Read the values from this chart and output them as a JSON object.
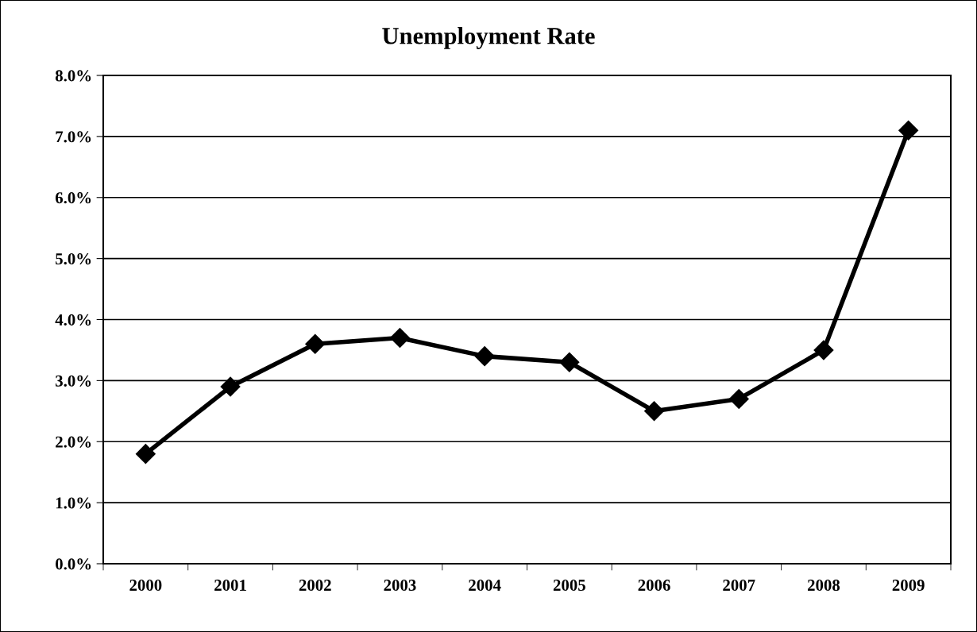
{
  "chart_data": {
    "type": "line",
    "title": "Unemployment Rate",
    "categories": [
      "2000",
      "2001",
      "2002",
      "2003",
      "2004",
      "2005",
      "2006",
      "2007",
      "2008",
      "2009"
    ],
    "series": [
      {
        "color": "#000000",
        "values": [
          1.8,
          2.9,
          3.6,
          3.7,
          3.4,
          3.3,
          2.5,
          2.7,
          3.5,
          7.1
        ]
      }
    ],
    "ylim": [
      0,
      8
    ],
    "yticks": [
      {
        "value": 0,
        "label": "0.0%"
      },
      {
        "value": 1,
        "label": "1.0%"
      },
      {
        "value": 2,
        "label": "2.0%"
      },
      {
        "value": 3,
        "label": "3.0%"
      },
      {
        "value": 4,
        "label": "4.0%"
      },
      {
        "value": 5,
        "label": "5.0%"
      },
      {
        "value": 6,
        "label": "6.0%"
      },
      {
        "value": 7,
        "label": "7.0%"
      },
      {
        "value": 8,
        "label": "8.0%"
      }
    ],
    "grid": "y",
    "marker": "diamond",
    "line_style": "solid",
    "legend": false
  }
}
